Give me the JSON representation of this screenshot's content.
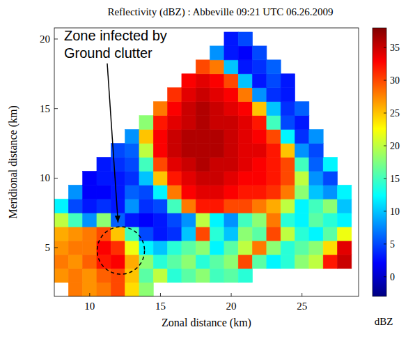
{
  "chart_data": {
    "type": "heatmap",
    "title": "Reflectivity (dBZ) : Abbeville 09:21 UTC 06.26.2009",
    "x_label": "Zonal distance (km)",
    "y_label": "Meridional distance (km)",
    "xlim": [
      7.5,
      29
    ],
    "ylim": [
      1.5,
      20.8
    ],
    "xticks": [
      10,
      15,
      20,
      25
    ],
    "yticks": [
      5,
      10,
      15,
      20
    ],
    "x": [
      8,
      9,
      10,
      11,
      12,
      13,
      14,
      15,
      16,
      17,
      18,
      19,
      20,
      21,
      22,
      23,
      24,
      25,
      26,
      27,
      28
    ],
    "y": [
      2,
      3,
      4,
      5,
      6,
      7,
      8,
      9,
      10,
      11,
      12,
      13,
      14,
      15,
      16,
      17,
      18,
      19,
      20
    ],
    "values": [
      [
        null,
        28,
        27,
        28,
        30,
        24,
        18,
        null,
        null,
        null,
        null,
        null,
        null,
        null,
        null,
        null,
        null,
        null,
        null,
        null,
        null
      ],
      [
        27,
        28,
        27,
        29,
        30,
        25,
        16,
        20,
        14,
        16,
        18,
        15,
        16,
        14,
        null,
        null,
        null,
        null,
        null,
        null,
        null
      ],
      [
        28,
        27,
        29,
        32,
        33,
        26,
        18,
        14,
        16,
        18,
        14,
        16,
        18,
        30,
        16,
        12,
        14,
        18,
        20,
        32,
        35
      ],
      [
        27,
        28,
        28,
        33,
        31,
        22,
        12,
        10,
        14,
        16,
        18,
        12,
        16,
        20,
        28,
        18,
        14,
        16,
        18,
        24,
        34
      ],
      [
        26,
        27,
        28,
        30,
        25,
        15,
        5,
        3,
        4,
        10,
        30,
        14,
        10,
        18,
        16,
        30,
        20,
        14,
        12,
        16,
        22
      ],
      [
        20,
        15,
        8,
        18,
        6,
        3,
        2,
        3,
        5,
        8,
        20,
        12,
        8,
        15,
        18,
        28,
        14,
        12,
        16,
        14,
        12
      ],
      [
        12,
        5,
        3,
        4,
        3,
        8,
        4,
        5,
        15,
        28,
        32,
        32,
        30,
        30,
        28,
        26,
        20,
        12,
        15,
        18,
        10
      ],
      [
        null,
        8,
        2,
        2,
        3,
        6,
        5,
        12,
        28,
        33,
        34,
        34,
        33,
        32,
        32,
        31,
        28,
        18,
        10,
        8,
        12
      ],
      [
        null,
        null,
        2,
        3,
        3,
        4,
        10,
        25,
        32,
        34,
        35,
        35,
        34,
        33,
        33,
        32,
        30,
        20,
        8,
        5,
        null
      ],
      [
        null,
        null,
        null,
        3,
        4,
        5,
        15,
        30,
        34,
        35,
        36,
        35,
        35,
        34,
        33,
        32,
        30,
        15,
        6,
        12,
        null
      ],
      [
        null,
        null,
        null,
        null,
        5,
        6,
        20,
        33,
        35,
        36,
        36,
        36,
        35,
        34,
        34,
        32,
        25,
        8,
        5,
        null,
        null
      ],
      [
        null,
        null,
        null,
        null,
        null,
        8,
        25,
        33,
        35,
        36,
        36,
        36,
        35,
        34,
        33,
        30,
        12,
        4,
        8,
        null,
        null
      ],
      [
        null,
        null,
        null,
        null,
        null,
        null,
        18,
        32,
        34,
        35,
        36,
        35,
        35,
        34,
        32,
        15,
        5,
        3,
        null,
        null,
        null
      ],
      [
        null,
        null,
        null,
        null,
        null,
        null,
        null,
        28,
        33,
        35,
        36,
        35,
        34,
        33,
        25,
        10,
        4,
        6,
        null,
        null,
        null
      ],
      [
        null,
        null,
        null,
        null,
        null,
        null,
        null,
        null,
        31,
        34,
        35,
        34,
        33,
        28,
        8,
        4,
        3,
        null,
        null,
        null,
        null
      ],
      [
        null,
        null,
        null,
        null,
        null,
        null,
        null,
        null,
        null,
        33,
        34,
        33,
        30,
        10,
        3,
        5,
        3,
        null,
        null,
        null,
        null
      ],
      [
        null,
        null,
        null,
        null,
        null,
        null,
        null,
        null,
        null,
        null,
        30,
        28,
        10,
        3,
        4,
        6,
        null,
        null,
        null,
        null,
        null
      ],
      [
        null,
        null,
        null,
        null,
        null,
        null,
        null,
        null,
        null,
        null,
        null,
        8,
        3,
        2,
        5,
        null,
        null,
        null,
        null,
        null,
        null
      ],
      [
        null,
        null,
        null,
        null,
        null,
        null,
        null,
        null,
        null,
        null,
        null,
        null,
        3,
        5,
        null,
        null,
        null,
        null,
        null,
        null,
        null
      ]
    ],
    "colorbar": {
      "range": [
        -3,
        38
      ],
      "ticks": [
        0,
        5,
        10,
        15,
        20,
        25,
        30,
        35
      ],
      "label": "dBZ"
    },
    "annotation": {
      "text": [
        "Zone infected by",
        "Ground clutter"
      ],
      "x": 12.2,
      "y": 4.8
    }
  }
}
